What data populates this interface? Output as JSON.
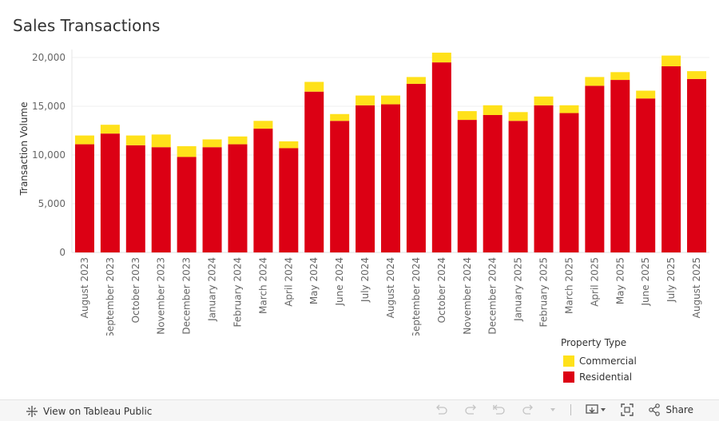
{
  "title": "Sales Transactions",
  "chart_data": {
    "type": "bar",
    "stacked": true,
    "categories": [
      "August 2023",
      "September 2023",
      "October 2023",
      "November 2023",
      "December 2023",
      "January 2024",
      "February 2024",
      "March 2024",
      "April 2024",
      "May 2024",
      "June 2024",
      "July 2024",
      "August 2024",
      "September 2024",
      "October 2024",
      "November 2024",
      "December 2024",
      "January 2025",
      "February 2025",
      "March 2025",
      "April 2025",
      "May 2025",
      "June 2025",
      "July 2025",
      "August 2025"
    ],
    "series": [
      {
        "name": "Residential",
        "color": "#dc0014",
        "values": [
          11100,
          12200,
          11000,
          10800,
          9800,
          10800,
          11100,
          12700,
          10700,
          16500,
          13500,
          15100,
          15200,
          17300,
          19500,
          13600,
          14100,
          13500,
          15100,
          14300,
          17100,
          17700,
          15800,
          19100,
          17800
        ]
      },
      {
        "name": "Commercial",
        "color": "#ffe11a",
        "values": [
          900,
          900,
          1000,
          1300,
          1100,
          800,
          800,
          800,
          700,
          1000,
          700,
          1000,
          900,
          700,
          1000,
          900,
          1000,
          900,
          900,
          800,
          900,
          800,
          800,
          1100,
          800
        ]
      }
    ],
    "xlabel": "",
    "ylabel": "Transaction Volume",
    "ylim": [
      0,
      20000
    ],
    "yticks": [
      0,
      5000,
      10000,
      15000,
      20000
    ],
    "ytick_labels": [
      "0",
      "5,000",
      "10,000",
      "15,000",
      "20,000"
    ],
    "grid": true,
    "legend": {
      "title": "Property Type",
      "placement": "bottom-right",
      "entries": [
        "Commercial",
        "Residential"
      ]
    }
  },
  "toolbar": {
    "view_label": "View on Tableau Public",
    "share_label": "Share",
    "icons": [
      "tableau-logo-icon",
      "undo-icon",
      "redo-icon",
      "revert-icon",
      "refresh-icon",
      "dropdown-caret-icon",
      "download-icon",
      "fullscreen-icon",
      "share-icon"
    ]
  }
}
